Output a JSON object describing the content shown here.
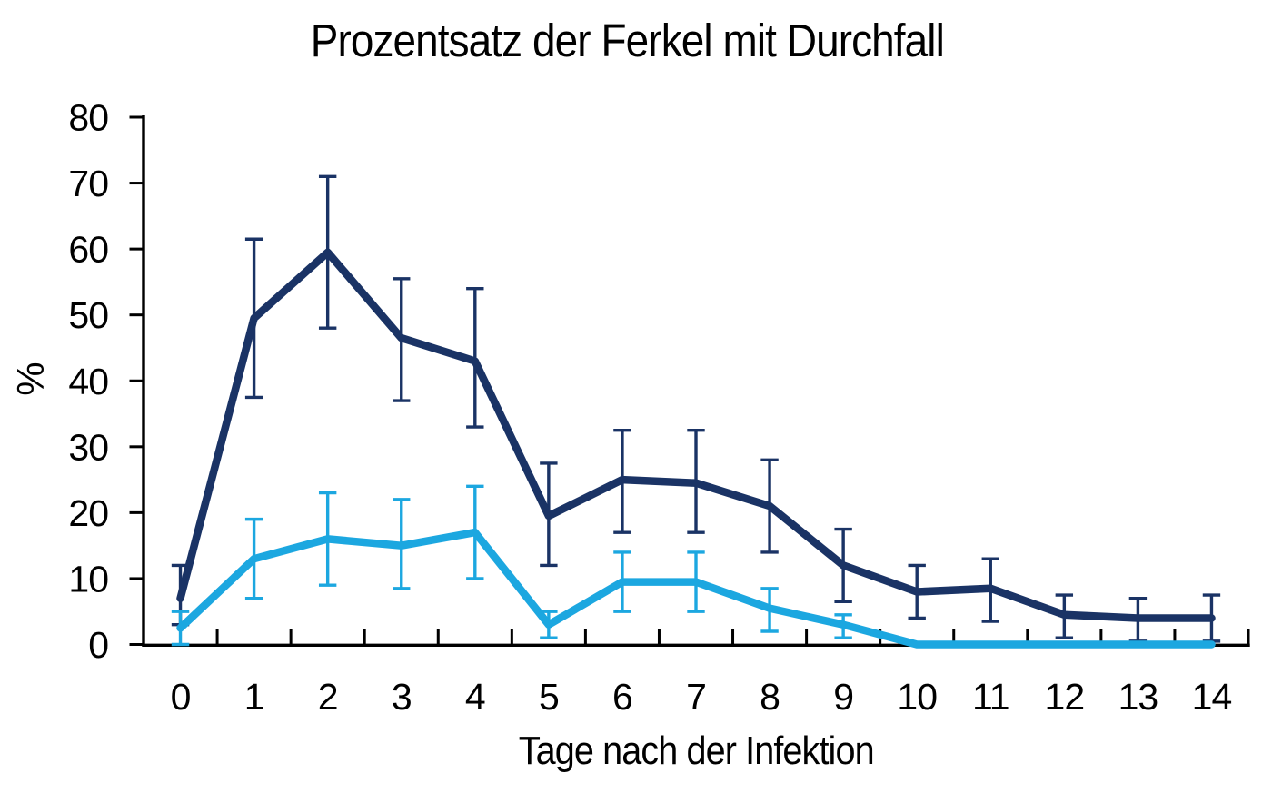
{
  "page": {
    "background": "#ffffff"
  },
  "chart_data": {
    "type": "line",
    "title": "Prozentsatz der Ferkel mit Durchfall",
    "xlabel": "Tage nach der Infektion",
    "ylabel": "%",
    "categories": [
      "0",
      "1",
      "2",
      "3",
      "4",
      "5",
      "6",
      "7",
      "8",
      "9",
      "10",
      "11",
      "12",
      "13",
      "14"
    ],
    "y_ticks": [
      0,
      10,
      20,
      30,
      40,
      50,
      60,
      70,
      80
    ],
    "ylim": [
      0,
      80
    ],
    "grid": false,
    "legend": "none",
    "error_bars": true,
    "axis_color": "#000000",
    "series": [
      {
        "name": "dark-blue-line",
        "color": "#1a3365",
        "values": [
          7,
          49.5,
          59.5,
          46.5,
          43,
          19.5,
          25,
          24.5,
          21,
          12,
          8,
          8.5,
          4.5,
          4,
          4
        ],
        "error_upper": [
          12,
          61.5,
          71,
          55.5,
          54,
          27.5,
          32.5,
          32.5,
          28,
          17.5,
          12,
          13,
          7.5,
          7,
          7.5
        ],
        "error_lower": [
          3,
          37.5,
          48,
          37,
          33,
          12,
          17,
          17,
          14,
          6.5,
          4,
          3.5,
          1,
          0.5,
          0.5
        ]
      },
      {
        "name": "light-blue-line",
        "color": "#1ca7e0",
        "values": [
          2.5,
          13,
          16,
          15,
          17,
          3,
          9.5,
          9.5,
          5.5,
          3,
          0,
          0,
          0,
          0,
          0
        ],
        "error_upper": [
          5,
          19,
          23,
          22,
          24,
          5,
          14,
          14,
          8.5,
          4.5,
          null,
          null,
          null,
          null,
          null
        ],
        "error_lower": [
          0,
          7,
          9,
          8.5,
          10,
          1,
          5,
          5,
          2,
          1,
          null,
          null,
          null,
          null,
          null
        ]
      }
    ]
  }
}
